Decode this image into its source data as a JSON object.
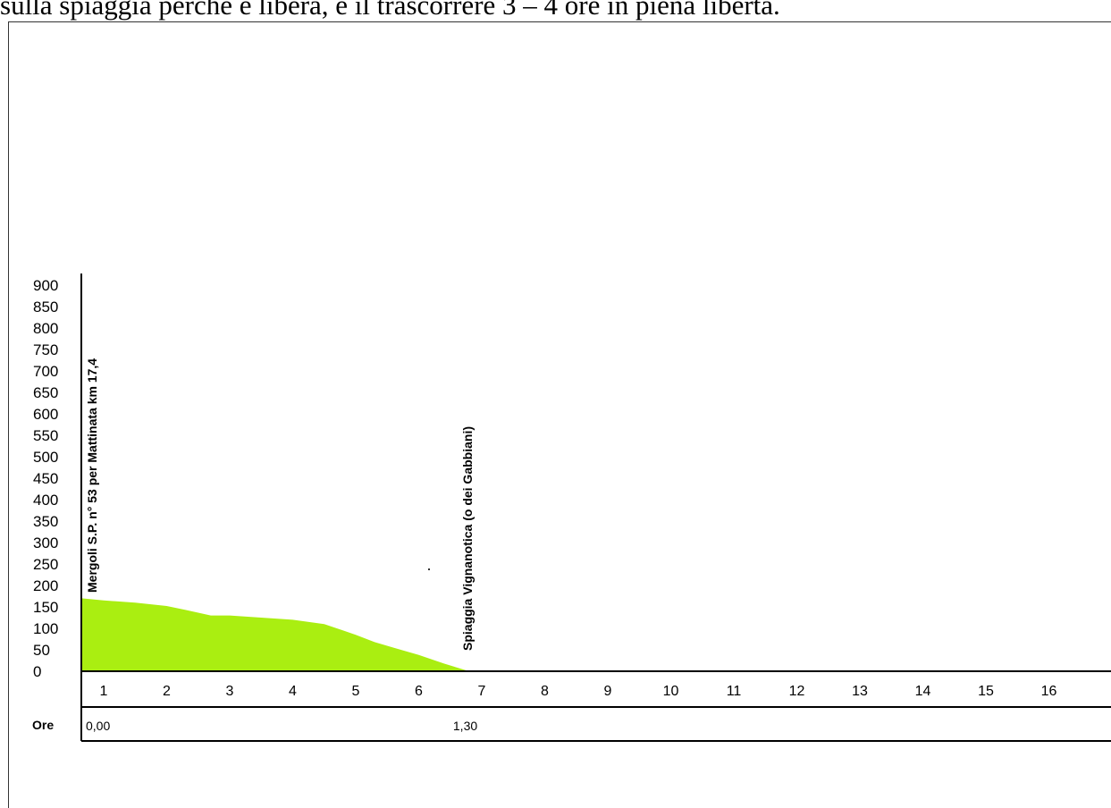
{
  "page": {
    "top_text": "sulla spiaggia perché è libera, e il trascorrere 3 – 4 ore in piena libertà."
  },
  "chart_data": {
    "type": "area",
    "ylim": [
      0,
      900
    ],
    "yticks": [
      0,
      50,
      100,
      150,
      200,
      250,
      300,
      350,
      400,
      450,
      500,
      550,
      600,
      650,
      700,
      750,
      800,
      850,
      900
    ],
    "xlim": [
      0.65,
      16.6
    ],
    "xticks": [
      1,
      2,
      3,
      4,
      5,
      6,
      7,
      8,
      9,
      10,
      11,
      12,
      13,
      14,
      15,
      16
    ],
    "fill_color": "#aaee11",
    "series": [
      {
        "x": [
          0.65,
          1.0,
          1.5,
          2.0,
          2.3,
          2.7,
          3.0,
          3.5,
          4.0,
          4.5,
          4.8,
          5.0,
          5.3,
          5.6,
          6.0,
          6.4,
          6.8
        ],
        "y": [
          170,
          165,
          160,
          152,
          143,
          130,
          130,
          125,
          120,
          110,
          95,
          85,
          68,
          55,
          38,
          18,
          0
        ]
      }
    ],
    "waypoints": [
      {
        "x": 0.65,
        "label": "Mergoli S.P. n° 53 per Mattinata km 17,4"
      },
      {
        "x": 6.8,
        "label": "Spiaggia Vignanotica (o dei Gabbiani)"
      }
    ],
    "time_row": {
      "label": "Ore",
      "values": [
        {
          "x": 0.65,
          "text": "0,00"
        },
        {
          "x": 6.8,
          "text": "1,30"
        }
      ]
    }
  }
}
